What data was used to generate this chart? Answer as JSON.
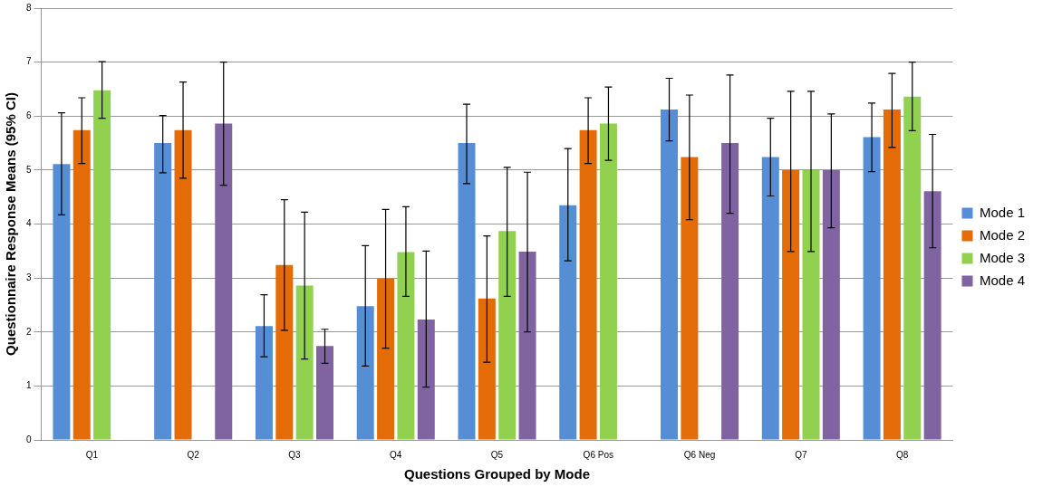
{
  "chart_data": {
    "type": "bar",
    "xlabel": "Questions Grouped by Mode",
    "ylabel": "Questionnaire Response Means (95% CI)",
    "categories": [
      "Q1",
      "Q2",
      "Q3",
      "Q4",
      "Q5",
      "Q6 Pos",
      "Q6 Neg",
      "Q7",
      "Q8"
    ],
    "ylim": [
      0,
      8
    ],
    "yticks": [
      0,
      1,
      2,
      3,
      4,
      5,
      6,
      7,
      8
    ],
    "grid": "y",
    "legend": "right",
    "series": [
      {
        "name": "Mode 1",
        "color": "#558ed5",
        "values": [
          5.11,
          5.5,
          2.11,
          2.48,
          5.5,
          4.35,
          6.12,
          5.24,
          5.61
        ],
        "errors": [
          [
            4.17,
            6.06
          ],
          [
            4.95,
            6.01
          ],
          [
            1.54,
            2.69
          ],
          [
            1.37,
            3.6
          ],
          [
            4.75,
            6.22
          ],
          [
            3.32,
            5.4
          ],
          [
            5.54,
            6.7
          ],
          [
            4.52,
            5.96
          ],
          [
            4.97,
            6.24
          ]
        ]
      },
      {
        "name": "Mode 2",
        "color": "#e36c09",
        "values": [
          5.74,
          5.74,
          3.24,
          2.99,
          2.62,
          5.74,
          5.24,
          5.0,
          6.12
        ],
        "errors": [
          [
            5.12,
            6.34
          ],
          [
            4.85,
            6.63
          ],
          [
            2.03,
            4.45
          ],
          [
            1.7,
            4.27
          ],
          [
            1.44,
            3.78
          ],
          [
            5.12,
            6.34
          ],
          [
            4.08,
            6.39
          ],
          [
            3.49,
            6.46
          ],
          [
            5.42,
            6.79
          ]
        ]
      },
      {
        "name": "Mode 3",
        "color": "#92d050",
        "values": [
          6.48,
          null,
          2.86,
          3.48,
          3.87,
          5.86,
          null,
          5.0,
          6.36
        ],
        "errors": [
          [
            5.96,
            7.01
          ],
          null,
          [
            1.5,
            4.22
          ],
          [
            2.66,
            4.32
          ],
          [
            2.66,
            5.05
          ],
          [
            5.18,
            6.54
          ],
          null,
          [
            3.49,
            6.46
          ],
          [
            5.73,
            7.0
          ]
        ]
      },
      {
        "name": "Mode 4",
        "color": "#8064a2",
        "values": [
          null,
          5.86,
          1.74,
          2.23,
          3.49,
          null,
          5.5,
          5.0,
          4.61
        ],
        "errors": [
          null,
          [
            4.72,
            7.0
          ],
          [
            1.42,
            2.05
          ],
          [
            0.98,
            3.5
          ],
          [
            2.0,
            4.96
          ],
          null,
          [
            4.2,
            6.76
          ],
          [
            3.93,
            6.04
          ],
          [
            3.56,
            5.66
          ]
        ]
      }
    ]
  }
}
